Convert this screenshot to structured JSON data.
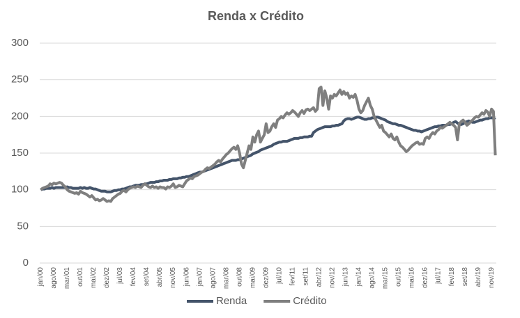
{
  "chart_data": {
    "type": "line",
    "title": "Renda x Crédito",
    "categories": [
      "jan/00",
      null,
      null,
      null,
      null,
      null,
      null,
      "ago/00",
      null,
      null,
      null,
      null,
      null,
      null,
      "mar/01",
      null,
      null,
      null,
      null,
      null,
      null,
      "out/01",
      null,
      null,
      null,
      null,
      null,
      null,
      "mai/02",
      null,
      null,
      null,
      null,
      null,
      null,
      "dez/02",
      null,
      null,
      null,
      null,
      null,
      null,
      "jul/03",
      null,
      null,
      null,
      null,
      null,
      null,
      "fev/04",
      null,
      null,
      null,
      null,
      null,
      null,
      "set/04",
      null,
      null,
      null,
      null,
      null,
      null,
      "abr/05",
      null,
      null,
      null,
      null,
      null,
      null,
      "nov/05",
      null,
      null,
      null,
      null,
      null,
      null,
      "jun/06",
      null,
      null,
      null,
      null,
      null,
      null,
      "jan/07",
      null,
      null,
      null,
      null,
      null,
      null,
      "ago/07",
      null,
      null,
      null,
      null,
      null,
      null,
      "mar/08",
      null,
      null,
      null,
      null,
      null,
      null,
      "out/08",
      null,
      null,
      null,
      null,
      null,
      null,
      "mai/09",
      null,
      null,
      null,
      null,
      null,
      null,
      "dez/09",
      null,
      null,
      null,
      null,
      null,
      null,
      "jul/10",
      null,
      null,
      null,
      null,
      null,
      null,
      "fev/11",
      null,
      null,
      null,
      null,
      null,
      null,
      "set/11",
      null,
      null,
      null,
      null,
      null,
      null,
      "abr/12",
      null,
      null,
      null,
      null,
      null,
      null,
      "nov/12",
      null,
      null,
      null,
      null,
      null,
      null,
      "jun/13",
      null,
      null,
      null,
      null,
      null,
      null,
      "jan/14",
      null,
      null,
      null,
      null,
      null,
      null,
      "ago/14",
      null,
      null,
      null,
      null,
      null,
      null,
      "mar/15",
      null,
      null,
      null,
      null,
      null,
      null,
      "out/15",
      null,
      null,
      null,
      null,
      null,
      null,
      "mai/16",
      null,
      null,
      null,
      null,
      null,
      null,
      "dez/16",
      null,
      null,
      null,
      null,
      null,
      null,
      "jul/17",
      null,
      null,
      null,
      null,
      null,
      null,
      "fev/18",
      null,
      null,
      null,
      null,
      null,
      null,
      "set/18",
      null,
      null,
      null,
      null,
      null,
      null,
      "abr/19",
      null,
      null,
      null,
      null,
      null,
      null,
      "nov/19",
      null,
      null
    ],
    "series": [
      {
        "name": "Renda",
        "color": "#44546a",
        "values": [
          100,
          101,
          101,
          102,
          102,
          102,
          103,
          102,
          103,
          103,
          103,
          103,
          103,
          103,
          104,
          103,
          103,
          102,
          102,
          102,
          102,
          103,
          102,
          103,
          102,
          102,
          103,
          102,
          101,
          101,
          100,
          99,
          98,
          98,
          98,
          97,
          97,
          97,
          98,
          99,
          99,
          100,
          100,
          101,
          101,
          102,
          103,
          104,
          104,
          105,
          106,
          106,
          106,
          107,
          107,
          108,
          108,
          109,
          110,
          110,
          110,
          111,
          111,
          112,
          112,
          113,
          113,
          113,
          114,
          114,
          115,
          115,
          115,
          116,
          116,
          117,
          117,
          118,
          118,
          119,
          120,
          121,
          122,
          123,
          124,
          124,
          125,
          126,
          127,
          128,
          129,
          130,
          131,
          132,
          133,
          134,
          135,
          136,
          137,
          138,
          139,
          140,
          140,
          140,
          141,
          141,
          142,
          143,
          144,
          145,
          146,
          147,
          149,
          150,
          151,
          152,
          154,
          155,
          156,
          157,
          158,
          159,
          160,
          162,
          163,
          164,
          165,
          165,
          166,
          166,
          166,
          167,
          168,
          169,
          170,
          170,
          170,
          171,
          171,
          172,
          172,
          172,
          173,
          173,
          178,
          180,
          182,
          183,
          184,
          185,
          186,
          186,
          186,
          186,
          187,
          187,
          188,
          188,
          189,
          190,
          194,
          196,
          197,
          197,
          196,
          197,
          198,
          199,
          199,
          198,
          197,
          196,
          196,
          197,
          197,
          198,
          198,
          199,
          199,
          198,
          197,
          196,
          195,
          193,
          192,
          191,
          190,
          190,
          189,
          188,
          188,
          187,
          186,
          185,
          184,
          183,
          182,
          181,
          181,
          180,
          180,
          179,
          180,
          181,
          182,
          183,
          184,
          185,
          186,
          186,
          187,
          187,
          188,
          188,
          188,
          189,
          189,
          190,
          192,
          193,
          191,
          189,
          189,
          190,
          192,
          193,
          194,
          193,
          192,
          192,
          193,
          194,
          195,
          195,
          196,
          197,
          197,
          198,
          198,
          198,
          196
        ]
      },
      {
        "name": "Crédito",
        "color": "#7f7f7f",
        "values": [
          100,
          102,
          103,
          104,
          105,
          108,
          107,
          109,
          108,
          109,
          110,
          109,
          106,
          104,
          100,
          98,
          97,
          96,
          95,
          96,
          94,
          98,
          96,
          95,
          94,
          92,
          90,
          92,
          89,
          86,
          87,
          85,
          86,
          88,
          86,
          84,
          85,
          84,
          88,
          90,
          92,
          94,
          95,
          98,
          99,
          97,
          100,
          102,
          103,
          104,
          103,
          105,
          104,
          103,
          106,
          108,
          106,
          104,
          103,
          105,
          103,
          104,
          102,
          104,
          103,
          103,
          101,
          104,
          103,
          105,
          108,
          103,
          104,
          106,
          105,
          104,
          108,
          112,
          114,
          116,
          115,
          118,
          119,
          120,
          122,
          124,
          125,
          128,
          130,
          129,
          131,
          133,
          135,
          138,
          140,
          138,
          142,
          145,
          148,
          150,
          153,
          156,
          158,
          155,
          160,
          150,
          135,
          130,
          140,
          150,
          160,
          155,
          172,
          165,
          175,
          180,
          165,
          170,
          175,
          190,
          178,
          180,
          186,
          190,
          185,
          195,
          197,
          200,
          198,
          202,
          205,
          203,
          205,
          208,
          206,
          203,
          200,
          205,
          208,
          204,
          209,
          210,
          208,
          210,
          212,
          207,
          210,
          238,
          240,
          215,
          235,
          225,
          210,
          228,
          225,
          230,
          228,
          232,
          236,
          230,
          234,
          230,
          232,
          225,
          228,
          226,
          230,
          222,
          210,
          205,
          208,
          215,
          220,
          225,
          215,
          210,
          200,
          195,
          190,
          185,
          188,
          180,
          178,
          175,
          172,
          176,
          170,
          168,
          172,
          165,
          160,
          158,
          155,
          152,
          154,
          157,
          160,
          162,
          164,
          165,
          162,
          163,
          162,
          170,
          172,
          170,
          175,
          178,
          176,
          180,
          182,
          185,
          184,
          186,
          188,
          190,
          192,
          190,
          188,
          185,
          168,
          190,
          193,
          195,
          192,
          188,
          190,
          193,
          195,
          198,
          200,
          199,
          202,
          205,
          203,
          208,
          206,
          200,
          210,
          207,
          147
        ]
      }
    ],
    "ylim": [
      0,
      300
    ],
    "yticks": [
      0,
      50,
      100,
      150,
      200,
      250,
      300
    ],
    "grid": true,
    "legend": "bottom"
  }
}
